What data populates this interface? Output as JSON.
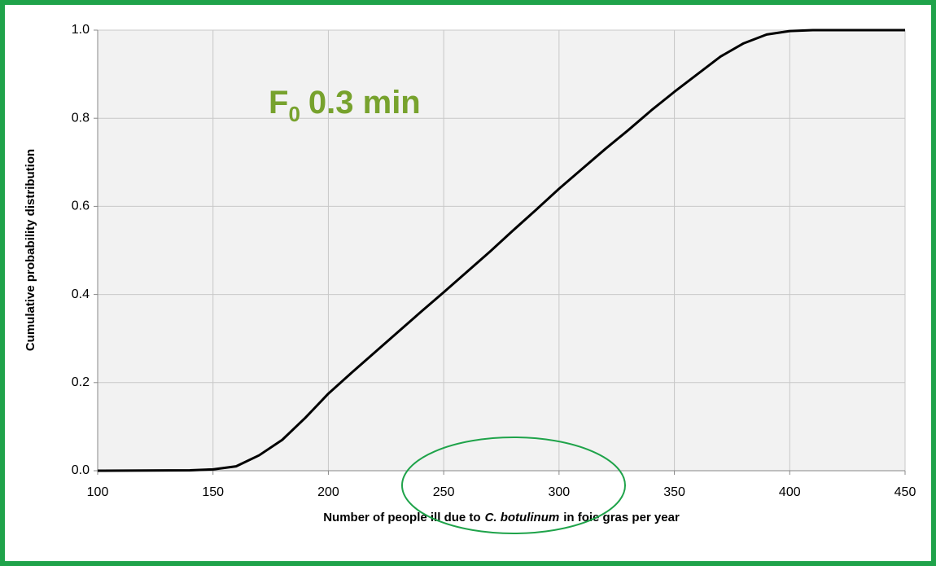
{
  "chart_data": {
    "type": "line",
    "annotation": {
      "main": "F",
      "subscript": "0",
      "suffix": "0.3 min"
    },
    "xlabel": [
      "Number of people ill due to",
      "C. botulinum",
      "in foie gras per year"
    ],
    "ylabel": "Cumulative probability distribution",
    "x": [
      100,
      140,
      150,
      160,
      170,
      180,
      190,
      200,
      210,
      220,
      230,
      240,
      250,
      260,
      270,
      280,
      290,
      300,
      310,
      320,
      330,
      340,
      350,
      360,
      370,
      380,
      390,
      400,
      410,
      450
    ],
    "series": [
      {
        "name": "F0 0.3 min",
        "color": "#000000",
        "values": [
          0,
          0.001,
          0.003,
          0.01,
          0.035,
          0.07,
          0.12,
          0.175,
          0.222,
          0.268,
          0.314,
          0.36,
          0.405,
          0.451,
          0.497,
          0.545,
          0.592,
          0.64,
          0.685,
          0.73,
          0.773,
          0.818,
          0.86,
          0.9,
          0.94,
          0.97,
          0.99,
          0.998,
          1.0,
          1.0
        ]
      }
    ],
    "xlim": [
      100,
      450
    ],
    "xticks": [
      100,
      150,
      200,
      250,
      300,
      350,
      400,
      450
    ],
    "ylim": [
      0,
      1
    ],
    "yticks": [
      {
        "value": 0,
        "label": "0.0"
      },
      0.2,
      0.4,
      0.6,
      0.8,
      {
        "value": 1,
        "label": "1.0"
      }
    ],
    "grid": true
  }
}
